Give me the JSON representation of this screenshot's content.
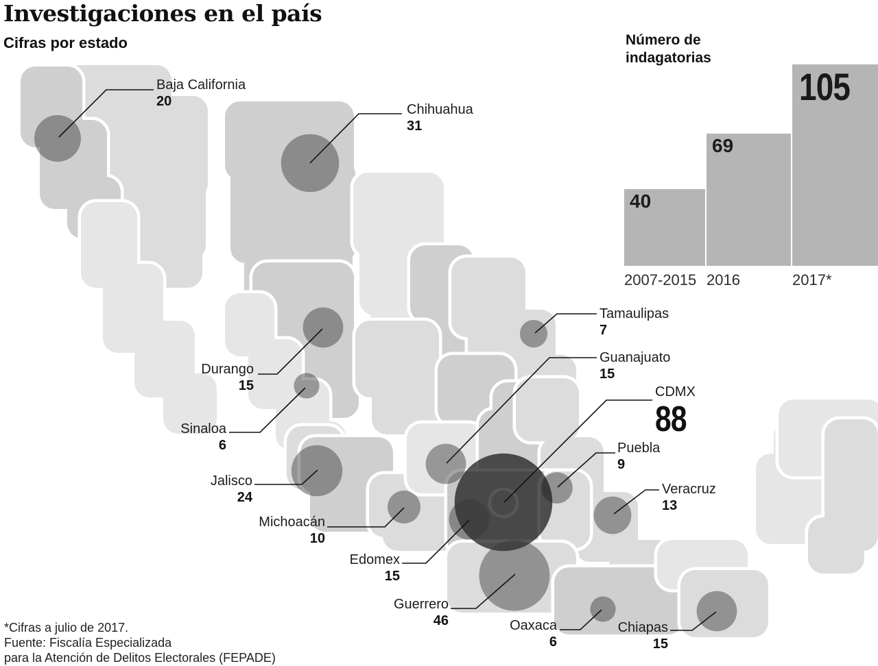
{
  "header": {
    "title": "Investigaciones en el país",
    "subtitle": "Cifras por estado"
  },
  "bar_chart": {
    "title_line1": "Número de",
    "title_line2": "indagatorias",
    "bars": [
      {
        "label": "2007-2015",
        "value": 40
      },
      {
        "label": "2016",
        "value": 69
      },
      {
        "label": "2017*",
        "value": 105
      }
    ]
  },
  "map": {
    "states": [
      {
        "name": "Baja California",
        "value": 20
      },
      {
        "name": "Chihuahua",
        "value": 31
      },
      {
        "name": "Durango",
        "value": 15
      },
      {
        "name": "Sinaloa",
        "value": 6
      },
      {
        "name": "Jalisco",
        "value": 24
      },
      {
        "name": "Michoacán",
        "value": 10
      },
      {
        "name": "Edomex",
        "value": 15
      },
      {
        "name": "Guerrero",
        "value": 46
      },
      {
        "name": "Tamaulipas",
        "value": 7
      },
      {
        "name": "Guanajuato",
        "value": 15
      },
      {
        "name": "CDMX",
        "value": 88
      },
      {
        "name": "Puebla",
        "value": 9
      },
      {
        "name": "Veracruz",
        "value": 13
      },
      {
        "name": "Oaxaca",
        "value": 6
      },
      {
        "name": "Chiapas",
        "value": 15
      }
    ]
  },
  "footer": {
    "line1": "*Cifras a julio de 2017.",
    "line2": "Fuente: Fiscalía Especializada",
    "line3": "para la Atención de Delitos Electorales (FEPADE)"
  },
  "colors": {
    "bar_fill": "#b5b5b5",
    "map_shades": [
      "#e6e6e6",
      "#dcdcdc",
      "#cfcfcf",
      "#c8c8c8"
    ],
    "bubble": "rgba(55,55,55,0.45)",
    "bubble_dark": "rgba(22,22,22,0.72)",
    "leader_line": "#111111",
    "text": "#1a1a1a"
  },
  "chart_data": [
    {
      "type": "bar",
      "title": "Número de indagatorias",
      "categories": [
        "2007-2015",
        "2016",
        "2017*"
      ],
      "values": [
        40,
        69,
        105
      ],
      "xlabel": "",
      "ylabel": "",
      "ylim": [
        0,
        105
      ],
      "grid": false,
      "value_labels": "inside-top",
      "note": "*Cifras a julio de 2017."
    },
    {
      "type": "scatter",
      "subtype": "bubble-map",
      "region": "México",
      "title": "Cifras por estado",
      "points": [
        {
          "state": "Baja California",
          "value": 20
        },
        {
          "state": "Chihuahua",
          "value": 31
        },
        {
          "state": "Durango",
          "value": 15
        },
        {
          "state": "Sinaloa",
          "value": 6
        },
        {
          "state": "Jalisco",
          "value": 24
        },
        {
          "state": "Michoacán",
          "value": 10
        },
        {
          "state": "Edomex",
          "value": 15
        },
        {
          "state": "Guerrero",
          "value": 46
        },
        {
          "state": "Tamaulipas",
          "value": 7
        },
        {
          "state": "Guanajuato",
          "value": 15
        },
        {
          "state": "CDMX",
          "value": 88
        },
        {
          "state": "Puebla",
          "value": 9
        },
        {
          "state": "Veracruz",
          "value": 13
        },
        {
          "state": "Oaxaca",
          "value": 6
        },
        {
          "state": "Chiapas",
          "value": 15
        }
      ],
      "source": "Fuente: Fiscalía Especializada para la Atención de Delitos Electorales (FEPADE)"
    }
  ]
}
